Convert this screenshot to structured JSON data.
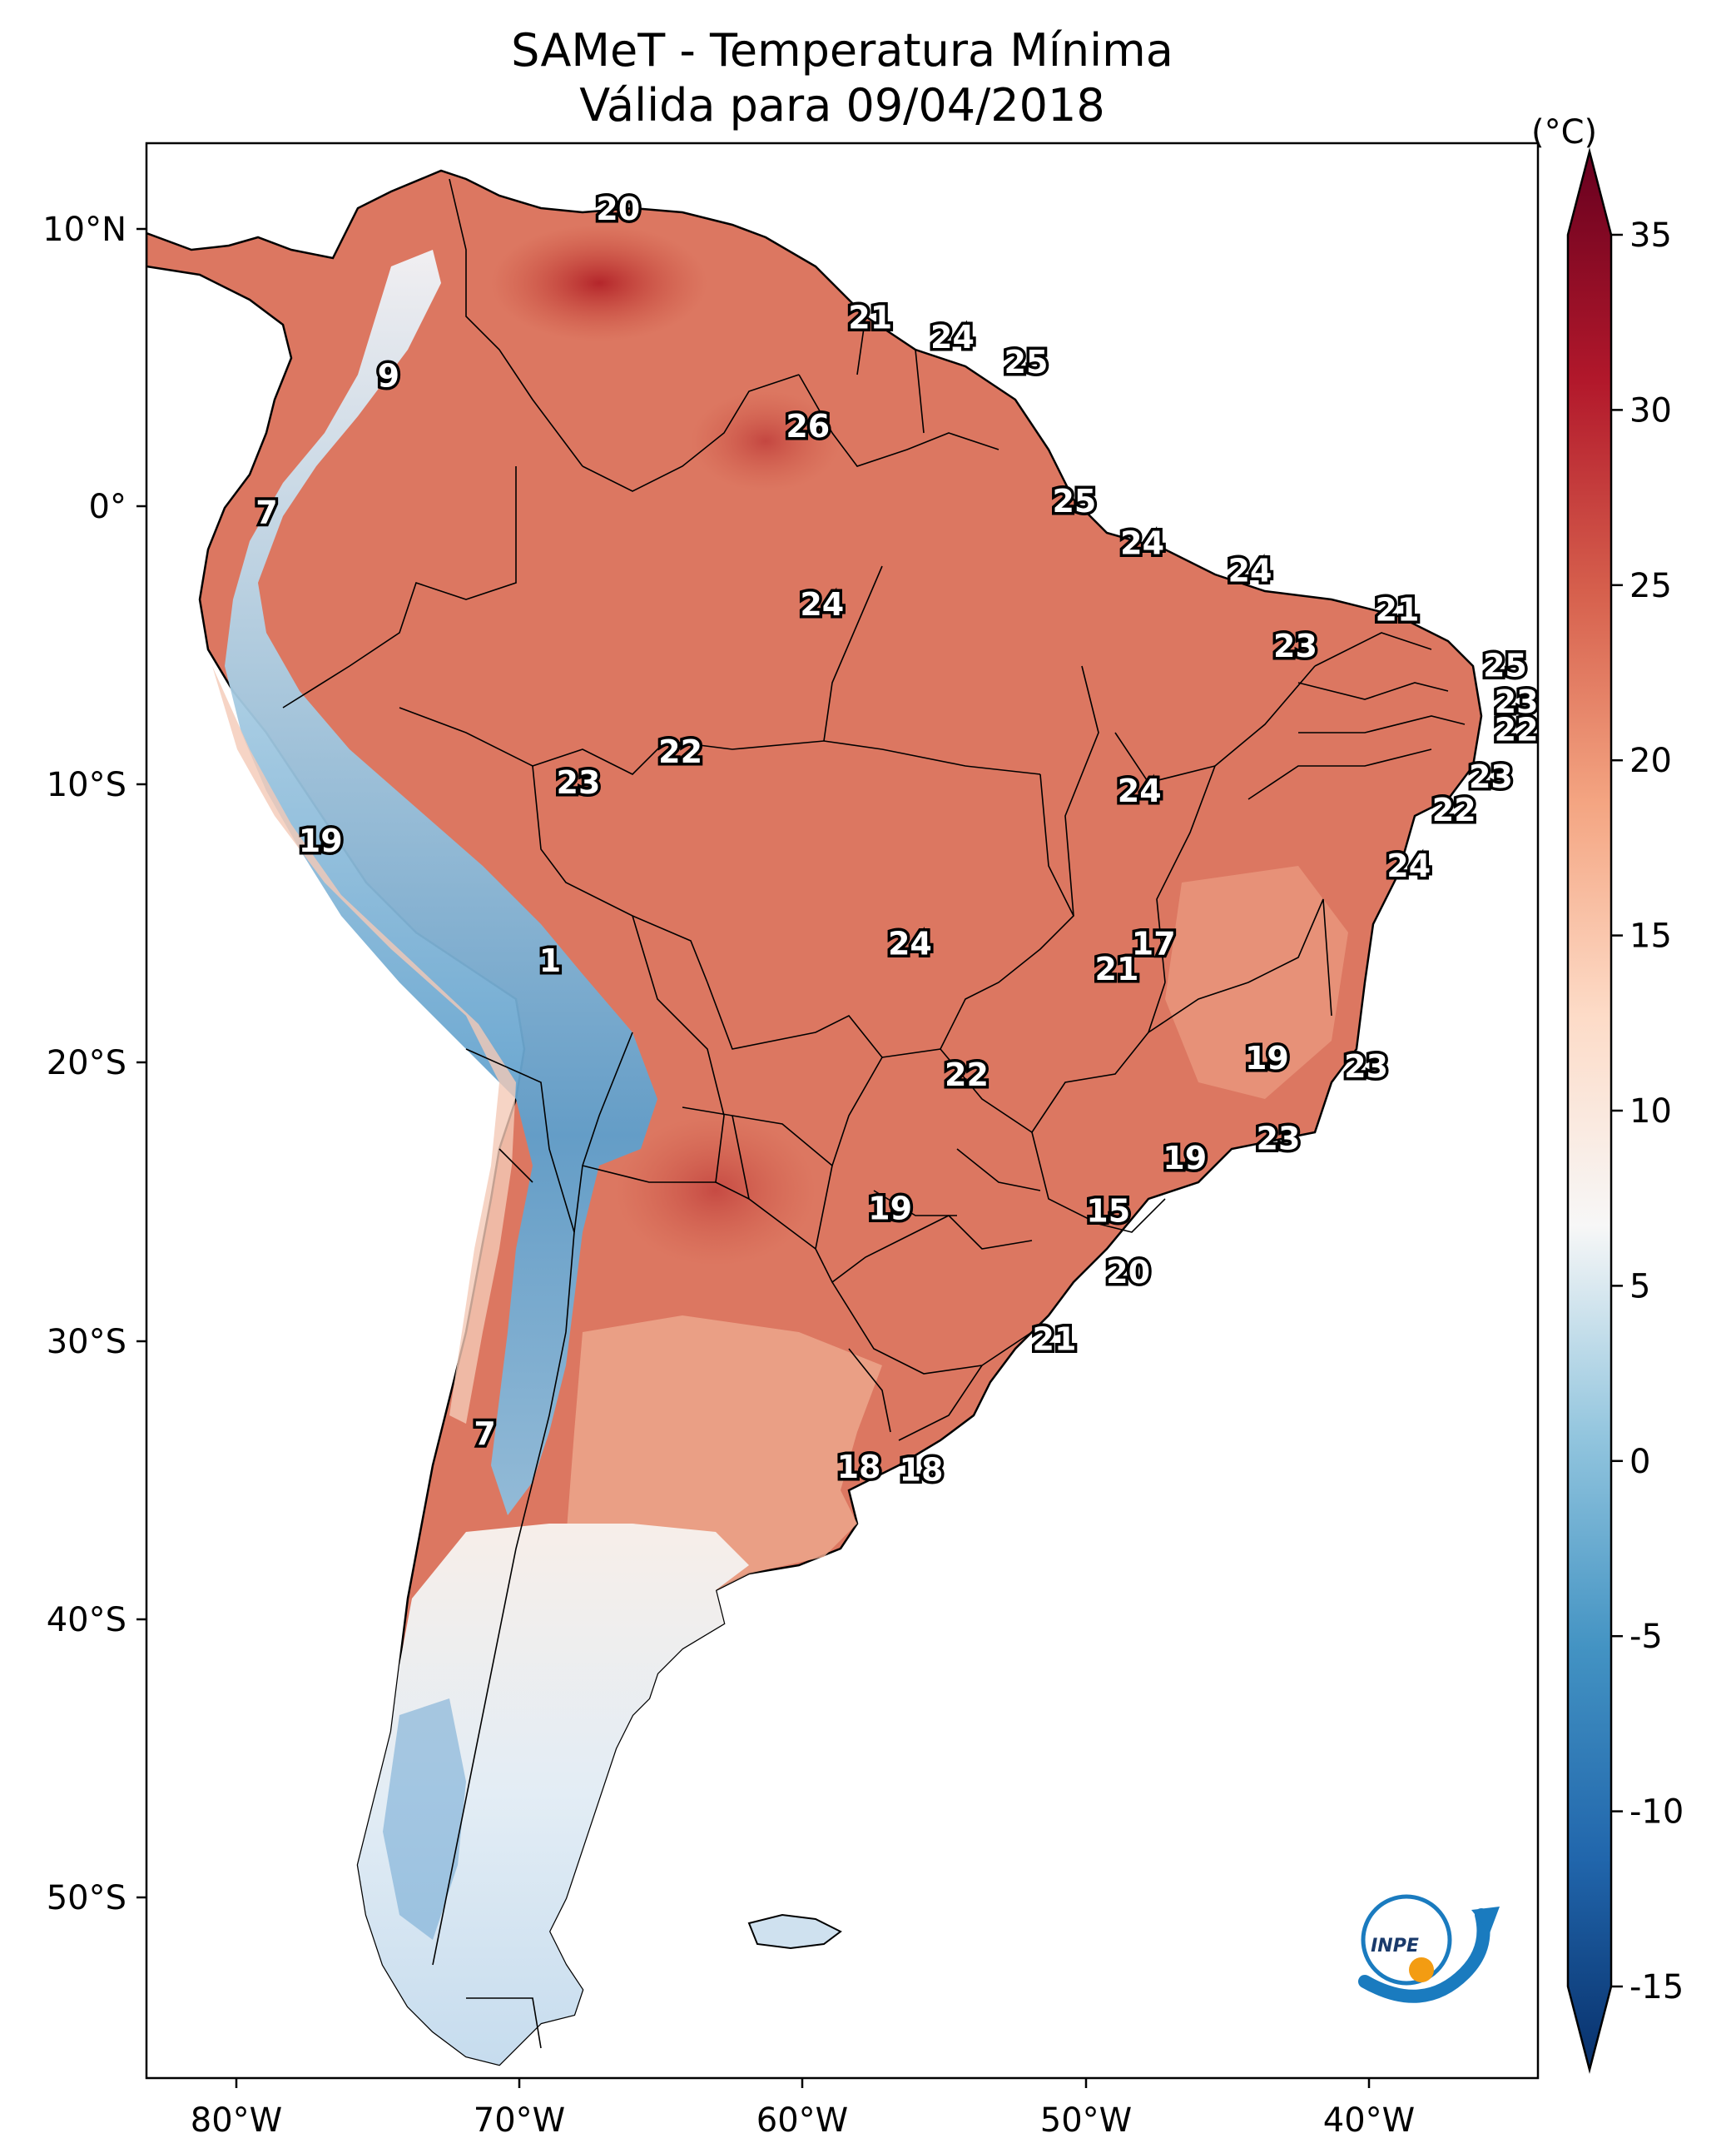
{
  "title": "SAMeT - Temperatura Mínima",
  "subtitle": "Válida para 09/04/2018",
  "colorbar": {
    "unit": "(°C)",
    "ticks": [
      "35",
      "30",
      "25",
      "20",
      "15",
      "10",
      "5",
      "0",
      "-5",
      "-10",
      "-15"
    ],
    "range": [
      -17,
      37
    ],
    "colors": [
      "#08306b",
      "#2166ac",
      "#4393c3",
      "#92c5de",
      "#f7f7f7",
      "#fddbc7",
      "#f4a582",
      "#d6604d",
      "#b2182b",
      "#67001f"
    ]
  },
  "axes": {
    "lon_labels": [
      "80°W",
      "70°W",
      "60°W",
      "50°W",
      "40°W"
    ],
    "lat_labels": [
      "10°N",
      "0°",
      "10°S",
      "20°S",
      "30°S",
      "40°S",
      "50°S"
    ]
  },
  "logo": {
    "text": "INPE"
  },
  "chart_data": {
    "type": "map",
    "variable": "Temperatura Mínima",
    "labels": [
      {
        "value": "20",
        "lon": -66.5,
        "lat": 10.6
      },
      {
        "value": "21",
        "lon": -57.6,
        "lat": 6.7
      },
      {
        "value": "24",
        "lon": -54.7,
        "lat": 6.0
      },
      {
        "value": "25",
        "lon": -52.1,
        "lat": 5.1
      },
      {
        "value": "9",
        "lon": -74.6,
        "lat": 4.6
      },
      {
        "value": "26",
        "lon": -59.8,
        "lat": 2.8
      },
      {
        "value": "25",
        "lon": -50.4,
        "lat": 0.1
      },
      {
        "value": "7",
        "lon": -78.9,
        "lat": -0.3
      },
      {
        "value": "24",
        "lon": -48.0,
        "lat": -1.4
      },
      {
        "value": "24",
        "lon": -44.2,
        "lat": -2.4
      },
      {
        "value": "21",
        "lon": -39.0,
        "lat": -3.8
      },
      {
        "value": "24",
        "lon": -59.3,
        "lat": -3.6
      },
      {
        "value": "23",
        "lon": -42.6,
        "lat": -5.1
      },
      {
        "value": "25",
        "lon": -35.2,
        "lat": -5.8
      },
      {
        "value": "23",
        "lon": -34.8,
        "lat": -7.1
      },
      {
        "value": "22",
        "lon": -34.8,
        "lat": -8.1
      },
      {
        "value": "23",
        "lon": -35.7,
        "lat": -9.8
      },
      {
        "value": "22",
        "lon": -64.3,
        "lat": -8.9
      },
      {
        "value": "23",
        "lon": -67.9,
        "lat": -10.0
      },
      {
        "value": "24",
        "lon": -48.1,
        "lat": -10.3
      },
      {
        "value": "22",
        "lon": -37.0,
        "lat": -11.0
      },
      {
        "value": "19",
        "lon": -77.0,
        "lat": -12.1
      },
      {
        "value": "24",
        "lon": -38.6,
        "lat": -13.0
      },
      {
        "value": "17",
        "lon": -47.6,
        "lat": -15.8
      },
      {
        "value": "24",
        "lon": -56.2,
        "lat": -15.8
      },
      {
        "value": "1",
        "lon": -68.9,
        "lat": -16.4
      },
      {
        "value": "21",
        "lon": -48.9,
        "lat": -16.7
      },
      {
        "value": "19",
        "lon": -43.6,
        "lat": -19.9
      },
      {
        "value": "23",
        "lon": -40.1,
        "lat": -20.2
      },
      {
        "value": "22",
        "lon": -54.2,
        "lat": -20.5
      },
      {
        "value": "23",
        "lon": -43.2,
        "lat": -22.8
      },
      {
        "value": "19",
        "lon": -46.5,
        "lat": -23.5
      },
      {
        "value": "19",
        "lon": -56.9,
        "lat": -25.3
      },
      {
        "value": "15",
        "lon": -49.2,
        "lat": -25.4
      },
      {
        "value": "20",
        "lon": -48.5,
        "lat": -27.6
      },
      {
        "value": "21",
        "lon": -51.1,
        "lat": -30.0
      },
      {
        "value": "7",
        "lon": -71.2,
        "lat": -33.4
      },
      {
        "value": "18",
        "lon": -58.0,
        "lat": -34.6
      },
      {
        "value": "18",
        "lon": -55.8,
        "lat": -34.7
      }
    ]
  }
}
